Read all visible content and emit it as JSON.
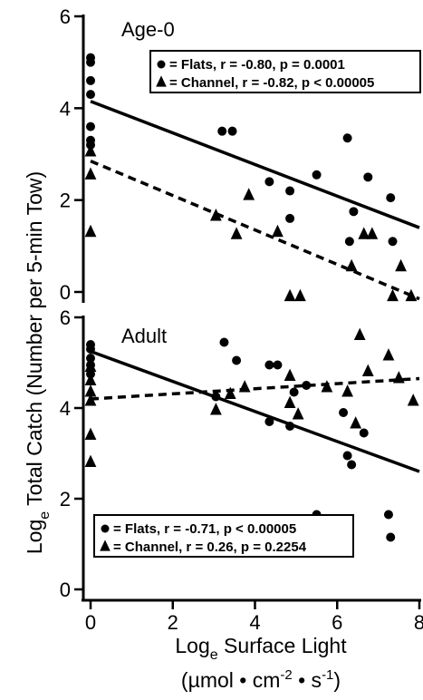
{
  "axes": {
    "xlabel_main": "Log",
    "xlabel_sub": "e",
    "xlabel_rest": " Surface Light",
    "xunits": "(µmol • cm",
    "xunits_exp1": "-2",
    "xunits_mid": " • s",
    "xunits_exp2": "-1",
    "xunits_end": ")",
    "ylabel_main": "Log",
    "ylabel_sub": "e",
    "ylabel_rest": " Total Catch (Number per 5-min Tow)"
  },
  "chart_data": [
    {
      "type": "scatter",
      "title": "Age-0",
      "xlim": [
        0,
        8
      ],
      "ylim": [
        0,
        6
      ],
      "xticks": [
        0,
        2,
        4,
        6,
        8
      ],
      "yticks": [
        0,
        2,
        4,
        6
      ],
      "legend_position": "top-right",
      "series": [
        {
          "name": "Flats",
          "marker": "circle",
          "legend_label": "= Flats, r = -0.80, p = 0.0001",
          "fit": {
            "style": "solid",
            "x": [
              0,
              8
            ],
            "y": [
              4.15,
              1.4
            ]
          },
          "points": [
            [
              0,
              5.1
            ],
            [
              0,
              5.0
            ],
            [
              0,
              4.6
            ],
            [
              0,
              4.3
            ],
            [
              0,
              3.6
            ],
            [
              0,
              3.3
            ],
            [
              0,
              3.2
            ],
            [
              3.2,
              3.5
            ],
            [
              3.45,
              3.5
            ],
            [
              4.35,
              2.4
            ],
            [
              4.85,
              2.2
            ],
            [
              4.85,
              1.6
            ],
            [
              5.5,
              2.55
            ],
            [
              6.25,
              3.35
            ],
            [
              6.3,
              1.1
            ],
            [
              6.4,
              1.75
            ],
            [
              6.75,
              2.5
            ],
            [
              7.3,
              2.05
            ],
            [
              7.35,
              1.1
            ]
          ]
        },
        {
          "name": "Channel",
          "marker": "triangle",
          "legend_label": "= Channel, r = -0.82, p  < 0.00005",
          "fit": {
            "style": "dashed",
            "x": [
              0,
              8
            ],
            "y": [
              2.85,
              -0.15
            ]
          },
          "points": [
            [
              0,
              3.05
            ],
            [
              0,
              2.55
            ],
            [
              0,
              1.3
            ],
            [
              3.05,
              1.65
            ],
            [
              3.55,
              1.25
            ],
            [
              3.85,
              2.1
            ],
            [
              4.55,
              1.3
            ],
            [
              4.85,
              -0.1
            ],
            [
              5.1,
              -0.1
            ],
            [
              6.35,
              0.55
            ],
            [
              6.65,
              1.25
            ],
            [
              6.85,
              1.25
            ],
            [
              7.35,
              -0.1
            ],
            [
              7.55,
              0.55
            ],
            [
              7.8,
              -0.1
            ]
          ]
        }
      ]
    },
    {
      "type": "scatter",
      "title": "Adult",
      "xlim": [
        0,
        8
      ],
      "ylim": [
        0,
        6
      ],
      "xticks": [
        0,
        2,
        4,
        6,
        8
      ],
      "yticks": [
        0,
        2,
        4,
        6
      ],
      "legend_position": "bottom-left",
      "series": [
        {
          "name": "Flats",
          "marker": "circle",
          "legend_label": "= Flats, r = -0.71, p  < 0.00005",
          "fit": {
            "style": "solid",
            "x": [
              0,
              8
            ],
            "y": [
              5.25,
              2.6
            ]
          },
          "points": [
            [
              0,
              5.4
            ],
            [
              0,
              5.3
            ],
            [
              0,
              5.1
            ],
            [
              0,
              4.95
            ],
            [
              0,
              4.75
            ],
            [
              3.25,
              5.45
            ],
            [
              3.55,
              5.05
            ],
            [
              3.05,
              4.25
            ],
            [
              4.35,
              3.7
            ],
            [
              4.35,
              4.95
            ],
            [
              4.55,
              4.95
            ],
            [
              4.85,
              3.6
            ],
            [
              4.95,
              4.35
            ],
            [
              5.25,
              4.5
            ],
            [
              5.5,
              1.65
            ],
            [
              6.15,
              3.9
            ],
            [
              6.25,
              2.95
            ],
            [
              6.35,
              2.75
            ],
            [
              6.65,
              3.45
            ],
            [
              7.25,
              1.65
            ],
            [
              7.3,
              1.15
            ]
          ]
        },
        {
          "name": "Channel",
          "marker": "triangle",
          "legend_label": "= Channel, r = 0.26, p = 0.2254",
          "fit": {
            "style": "dashed",
            "x": [
              0,
              8
            ],
            "y": [
              4.2,
              4.65
            ]
          },
          "points": [
            [
              0,
              4.9
            ],
            [
              0,
              4.6
            ],
            [
              0,
              4.35
            ],
            [
              0,
              4.15
            ],
            [
              0,
              3.4
            ],
            [
              0,
              2.8
            ],
            [
              3.05,
              3.95
            ],
            [
              3.4,
              4.3
            ],
            [
              3.75,
              4.45
            ],
            [
              4.85,
              4.7
            ],
            [
              4.85,
              4.1
            ],
            [
              5.05,
              3.85
            ],
            [
              5.75,
              4.45
            ],
            [
              6.25,
              4.35
            ],
            [
              6.45,
              3.65
            ],
            [
              6.55,
              5.6
            ],
            [
              6.75,
              4.8
            ],
            [
              7.25,
              5.15
            ],
            [
              7.5,
              4.65
            ],
            [
              7.85,
              4.15
            ]
          ]
        }
      ]
    }
  ]
}
